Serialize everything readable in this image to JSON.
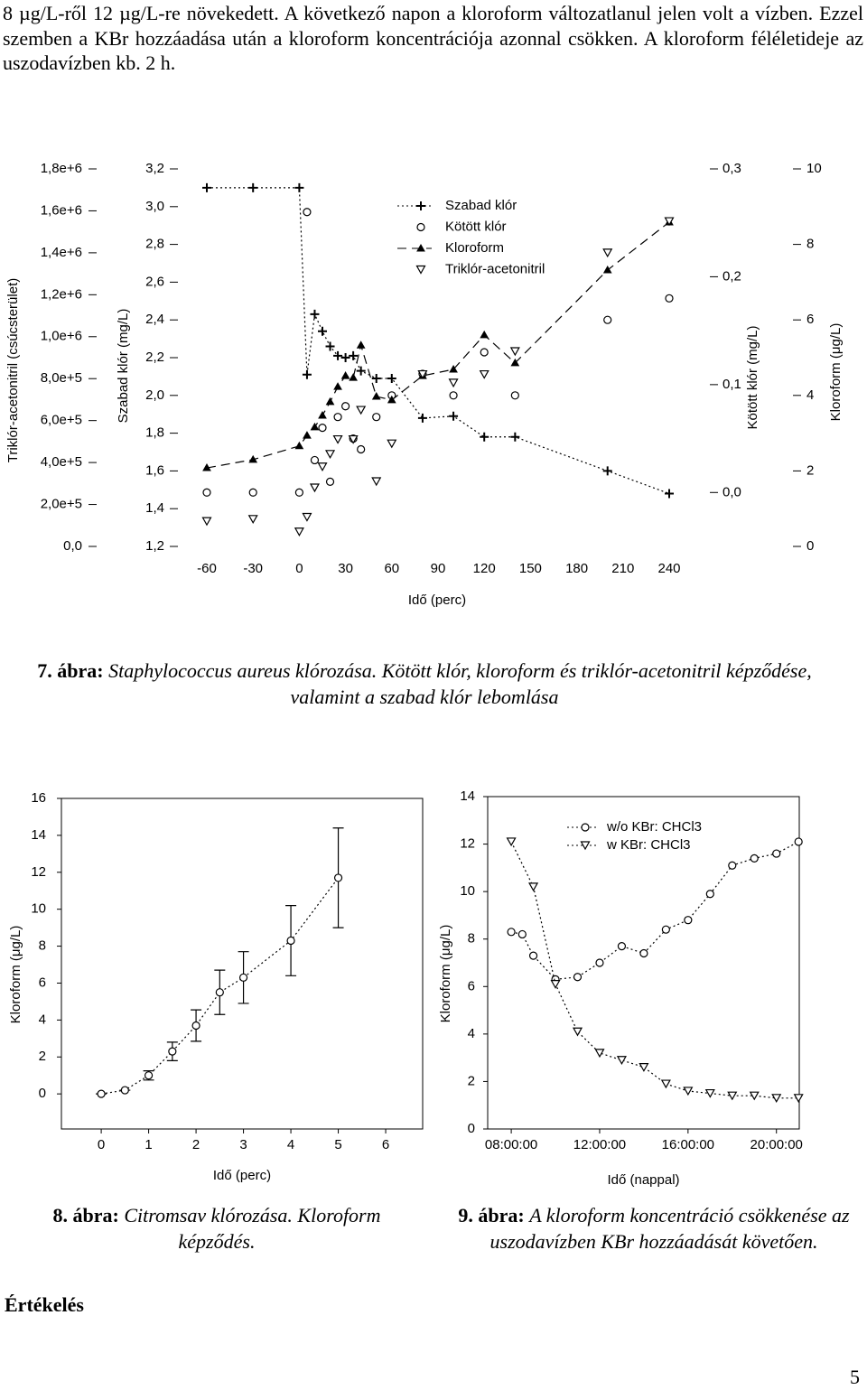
{
  "paragraph": "8 µg/L-ről 12 µg/L-re növekedett. A következő napon a kloroform változatlanul jelen volt a vízben. Ezzel szemben a KBr hozzáadása után a kloroform koncentrációja azonnal csökken. A kloroform féléletideje az uszodavízben kb. 2 h.",
  "chart_data": [
    {
      "type": "line",
      "xlabel": "Idő (perc)",
      "xlim": [
        -60,
        240
      ],
      "xticks": [
        -60,
        -30,
        0,
        30,
        60,
        90,
        120,
        150,
        180,
        210,
        240
      ],
      "legend": "upper center",
      "axes": [
        {
          "label": "Triklór-acetonitril (csúcsterület)",
          "lim": [
            0,
            1800000
          ],
          "ticks": [
            {
              "value": 0,
              "label": "0,0"
            },
            {
              "value": 200000,
              "label": "2,0e+5"
            },
            {
              "value": 400000,
              "label": "4,0e+5"
            },
            {
              "value": 600000,
              "label": "6,0e+5"
            },
            {
              "value": 800000,
              "label": "8,0e+5"
            },
            {
              "value": 1000000,
              "label": "1,0e+6"
            },
            {
              "value": 1200000,
              "label": "1,2e+6"
            },
            {
              "value": 1400000,
              "label": "1,4e+6"
            },
            {
              "value": 1600000,
              "label": "1,6e+6"
            },
            {
              "value": 1800000,
              "label": "1,8e+6"
            }
          ]
        },
        {
          "label": "Szabad klór (mg/L)",
          "lim": [
            1.2,
            3.2
          ],
          "ticks": [
            {
              "value": 1.2,
              "label": "1,2"
            },
            {
              "value": 1.4,
              "label": "1,4"
            },
            {
              "value": 1.6,
              "label": "1,6"
            },
            {
              "value": 1.8,
              "label": "1,8"
            },
            {
              "value": 2.0,
              "label": "2,0"
            },
            {
              "value": 2.2,
              "label": "2,2"
            },
            {
              "value": 2.4,
              "label": "2,4"
            },
            {
              "value": 2.6,
              "label": "2,6"
            },
            {
              "value": 2.8,
              "label": "2,8"
            },
            {
              "value": 3.0,
              "label": "3,0"
            },
            {
              "value": 3.2,
              "label": "3,2"
            }
          ]
        },
        {
          "label": "Kötött klór (mg/L)",
          "lim": [
            -0.05,
            0.3
          ],
          "ticks": [
            {
              "value": 0,
              "label": "0,0"
            },
            {
              "value": 0.1,
              "label": "0,1"
            },
            {
              "value": 0.2,
              "label": "0,2"
            },
            {
              "value": 0.3,
              "label": "0,3"
            }
          ]
        },
        {
          "label": "Kloroform (μg/L)",
          "lim": [
            0,
            10
          ],
          "ticks": [
            0,
            2,
            4,
            6,
            8,
            10
          ]
        }
      ],
      "series": [
        {
          "name": "Szabad klór",
          "color": "#000000",
          "marker": "plus",
          "line": "dotted",
          "axis": 1,
          "x": [
            -60,
            -30,
            0,
            5,
            10,
            15,
            20,
            25,
            30,
            35,
            40,
            50,
            60,
            80,
            100,
            120,
            140,
            200,
            240
          ],
          "values": [
            3.1,
            3.1,
            3.1,
            2.11,
            2.43,
            2.34,
            2.26,
            2.21,
            2.2,
            2.21,
            2.13,
            2.09,
            2.09,
            1.88,
            1.89,
            1.78,
            1.78,
            1.6,
            1.48
          ]
        },
        {
          "name": "Kötött klór",
          "color": "#000000",
          "marker": "circle",
          "line": "none",
          "axis": 2,
          "x": [
            -60,
            -30,
            0,
            5,
            10,
            15,
            20,
            25,
            30,
            35,
            40,
            50,
            60,
            80,
            100,
            120,
            140,
            200,
            240
          ],
          "values": [
            0,
            0,
            0,
            0.26,
            0.03,
            0.06,
            0.01,
            0.07,
            0.08,
            0.05,
            0.04,
            0.07,
            0.09,
            0.11,
            0.09,
            0.13,
            0.09,
            0.16,
            0.18
          ]
        },
        {
          "name": "Kloroform",
          "color": "#000000",
          "marker": "triangle-up",
          "line": "dashed",
          "axis": 3,
          "x": [
            -60,
            -30,
            0,
            5,
            10,
            15,
            20,
            25,
            30,
            35,
            40,
            50,
            60,
            80,
            100,
            120,
            140,
            200,
            240
          ],
          "values": [
            2.08,
            2.3,
            2.66,
            2.94,
            3.16,
            3.47,
            3.83,
            4.23,
            4.52,
            4.47,
            5.33,
            3.97,
            3.88,
            4.52,
            4.69,
            5.6,
            4.86,
            7.32,
            8.59
          ]
        },
        {
          "name": "Triklór-acetonitril",
          "color": "#000000",
          "marker": "triangle-down",
          "line": "none",
          "axis": 0,
          "x": [
            -60,
            -30,
            0,
            5,
            10,
            15,
            20,
            25,
            35,
            40,
            50,
            60,
            80,
            100,
            120,
            140,
            200,
            240
          ],
          "values": [
            120000,
            130000,
            70000,
            140000,
            280000,
            380000,
            440000,
            510000,
            510000,
            650000,
            310000,
            490000,
            820000,
            780000,
            820000,
            930000,
            1400000,
            1550000
          ]
        }
      ]
    },
    {
      "type": "line",
      "xlabel": "Idő (perc)",
      "ylabel": "Kloroform (μg/L)",
      "xlim": [
        -0.84,
        6.78
      ],
      "ylim": [
        -1.9,
        16
      ],
      "xticks": [
        0,
        1,
        2,
        3,
        4,
        5,
        6
      ],
      "yticks": [
        0,
        2,
        4,
        6,
        8,
        10,
        12,
        14,
        16
      ],
      "series": [
        {
          "color": "#000000",
          "marker": "circle",
          "line": "dotted",
          "x": [
            0,
            0.5,
            1,
            1.5,
            2,
            2.5,
            3,
            4,
            5
          ],
          "values": [
            0,
            0.2,
            1.0,
            2.3,
            3.7,
            5.5,
            6.3,
            8.3,
            11.7
          ],
          "errors": [
            0,
            0,
            0.25,
            0.5,
            0.85,
            1.2,
            1.4,
            1.9,
            2.7
          ]
        }
      ]
    },
    {
      "type": "line",
      "xlabel": "Idő (nappal)",
      "ylabel": "Kloroform (μg/L)",
      "xlim": [
        "06:56:00",
        "21:02:00"
      ],
      "ylim": [
        0,
        14
      ],
      "xticks": [
        "08:00:00",
        "12:00:00",
        "16:00:00",
        "20:00:00"
      ],
      "yticks": [
        0,
        2,
        4,
        6,
        8,
        10,
        12,
        14
      ],
      "legend": "upper right",
      "series": [
        {
          "name": "w/o KBr: CHCl3",
          "color": "#000000",
          "marker": "circle",
          "line": "dotted",
          "x": [
            "08:00:00",
            "08:30:00",
            "09:00:00",
            "10:00:00",
            "11:00:00",
            "12:00:00",
            "13:00:00",
            "14:00:00",
            "15:00:00",
            "16:00:00",
            "17:00:00",
            "18:00:00",
            "19:00:00",
            "20:00:00",
            "21:00:00"
          ],
          "values": [
            8.3,
            8.2,
            7.3,
            6.3,
            6.4,
            7.0,
            7.7,
            7.4,
            8.4,
            8.8,
            9.9,
            11.1,
            11.4,
            11.6,
            12.1
          ]
        },
        {
          "name": "w KBr: CHCl3",
          "color": "#000000",
          "marker": "triangle-down",
          "line": "dotted",
          "x": [
            "08:00:00",
            "09:00:00",
            "10:00:00",
            "11:00:00",
            "12:00:00",
            "13:00:00",
            "14:00:00",
            "15:00:00",
            "16:00:00",
            "17:00:00",
            "18:00:00",
            "19:00:00",
            "20:00:00",
            "21:00:00"
          ],
          "values": [
            12.1,
            10.2,
            6.1,
            4.1,
            3.2,
            2.9,
            2.6,
            1.9,
            1.6,
            1.5,
            1.4,
            1.4,
            1.3,
            1.3
          ]
        }
      ]
    }
  ],
  "captions": [
    {
      "label": "7. ábra:",
      "text": "Staphylococcus aureus klórozása. Kötött klór, kloroform és triklór-acetonitril képződése, valamint a szabad klór lebomlása"
    },
    {
      "label": "8. ábra:",
      "text": "Citromsav klórozása. Kloroform képződés."
    },
    {
      "label": "9. ábra:",
      "text": "A kloroform koncentráció csökkenése az uszodavízben KBr hozzáadását követően."
    }
  ],
  "heading": "Értékelés",
  "page_number": "5"
}
